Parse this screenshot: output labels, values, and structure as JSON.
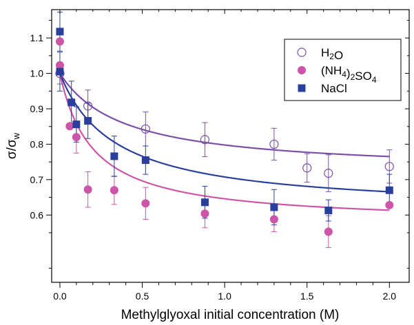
{
  "chart_data": {
    "type": "scatter",
    "xlabel": "Methylglyoxal initial concentration (M)",
    "ylabel": {
      "base": "σ/σ",
      "sub": "w"
    },
    "xlim": [
      -0.05,
      2.12
    ],
    "ylim": [
      0.41,
      1.18
    ],
    "xticks": [
      {
        "value": 0,
        "label": "0.0"
      },
      {
        "value": 0.5,
        "label": "0.5"
      },
      {
        "value": 1.0,
        "label": "1.0"
      },
      {
        "value": 1.5,
        "label": "1.5"
      },
      {
        "value": 2.0,
        "label": "2.0"
      }
    ],
    "yticks": [
      {
        "value": 0.6,
        "label": "0.6"
      },
      {
        "value": 0.7,
        "label": "0.7"
      },
      {
        "value": 0.8,
        "label": "0.8"
      },
      {
        "value": 0.9,
        "label": "0.9"
      },
      {
        "value": 1.0,
        "label": "1.0"
      },
      {
        "value": 1.1,
        "label": "1.1"
      }
    ],
    "minor_x": [
      0.1,
      0.2,
      0.3,
      0.4,
      0.6,
      0.7,
      0.8,
      0.9,
      1.1,
      1.2,
      1.3,
      1.4,
      1.6,
      1.7,
      1.8,
      1.9
    ],
    "minor_y": [
      0.45,
      0.55,
      0.65,
      0.75,
      0.85,
      0.95,
      1.05,
      1.15
    ],
    "grid": false,
    "legend_position": "top-right",
    "series": [
      {
        "label_parts": [
          {
            "t": "H"
          },
          {
            "t": "2",
            "sub": true
          },
          {
            "t": "O"
          }
        ],
        "marker": "open-circle",
        "color": "#7b4fa6",
        "points": [
          {
            "x": 0.0,
            "y": 1.0,
            "err": 0.03
          },
          {
            "x": 0.17,
            "y": 0.908,
            "err": 0.045
          },
          {
            "x": 0.52,
            "y": 0.843,
            "err": 0.048
          },
          {
            "x": 0.88,
            "y": 0.813,
            "err": 0.048
          },
          {
            "x": 1.3,
            "y": 0.8,
            "err": 0.045
          },
          {
            "x": 1.5,
            "y": 0.733,
            "err": 0.04
          },
          {
            "x": 1.63,
            "y": 0.718,
            "err": 0.052
          },
          {
            "x": 2.0,
            "y": 0.737,
            "err": 0.047
          }
        ],
        "fit": {
          "y0": 0.72,
          "a": 0.28,
          "k": 2.6
        }
      },
      {
        "label_parts": [
          {
            "t": "(NH"
          },
          {
            "t": "4",
            "sub": true
          },
          {
            "t": ")"
          },
          {
            "t": "2",
            "sub": true
          },
          {
            "t": "SO"
          },
          {
            "t": "4",
            "sub": true
          }
        ],
        "marker": "filled-circle",
        "color": "#cc55a8",
        "points": [
          {
            "x": 0.0,
            "y": 1.09,
            "err": 0.0
          },
          {
            "x": 0.0,
            "y": 1.023,
            "err": 0.0
          },
          {
            "x": 0.06,
            "y": 0.851,
            "err": 0.0
          },
          {
            "x": 0.1,
            "y": 0.82,
            "err": 0.045
          },
          {
            "x": 0.17,
            "y": 0.672,
            "err": 0.05
          },
          {
            "x": 0.33,
            "y": 0.67,
            "err": 0.04
          },
          {
            "x": 0.52,
            "y": 0.633,
            "err": 0.045
          },
          {
            "x": 0.88,
            "y": 0.604,
            "err": 0.04
          },
          {
            "x": 1.3,
            "y": 0.588,
            "err": 0.035
          },
          {
            "x": 1.63,
            "y": 0.553,
            "err": 0.045
          },
          {
            "x": 2.0,
            "y": 0.628,
            "err": 0.0
          }
        ],
        "fit": {
          "y0": 0.575,
          "a": 0.425,
          "k": 5.0
        }
      },
      {
        "label_parts": [
          {
            "t": "NaCl"
          }
        ],
        "marker": "filled-square",
        "color": "#2a3f9c",
        "points": [
          {
            "x": 0.0,
            "y": 1.118,
            "err": 0.055
          },
          {
            "x": 0.0,
            "y": 1.005,
            "err": 0.055
          },
          {
            "x": 0.07,
            "y": 0.918,
            "err": 0.06
          },
          {
            "x": 0.1,
            "y": 0.856,
            "err": 0.05
          },
          {
            "x": 0.17,
            "y": 0.866,
            "err": 0.05
          },
          {
            "x": 0.33,
            "y": 0.766,
            "err": 0.057
          },
          {
            "x": 0.52,
            "y": 0.755,
            "err": 0.04
          },
          {
            "x": 0.88,
            "y": 0.636,
            "err": 0.045
          },
          {
            "x": 1.3,
            "y": 0.622,
            "err": 0.05
          },
          {
            "x": 1.63,
            "y": 0.613,
            "err": 0.03
          },
          {
            "x": 2.0,
            "y": 0.67,
            "err": 0.045
          }
        ],
        "fit": {
          "y0": 0.61,
          "a": 0.39,
          "k": 3.0
        }
      }
    ]
  }
}
